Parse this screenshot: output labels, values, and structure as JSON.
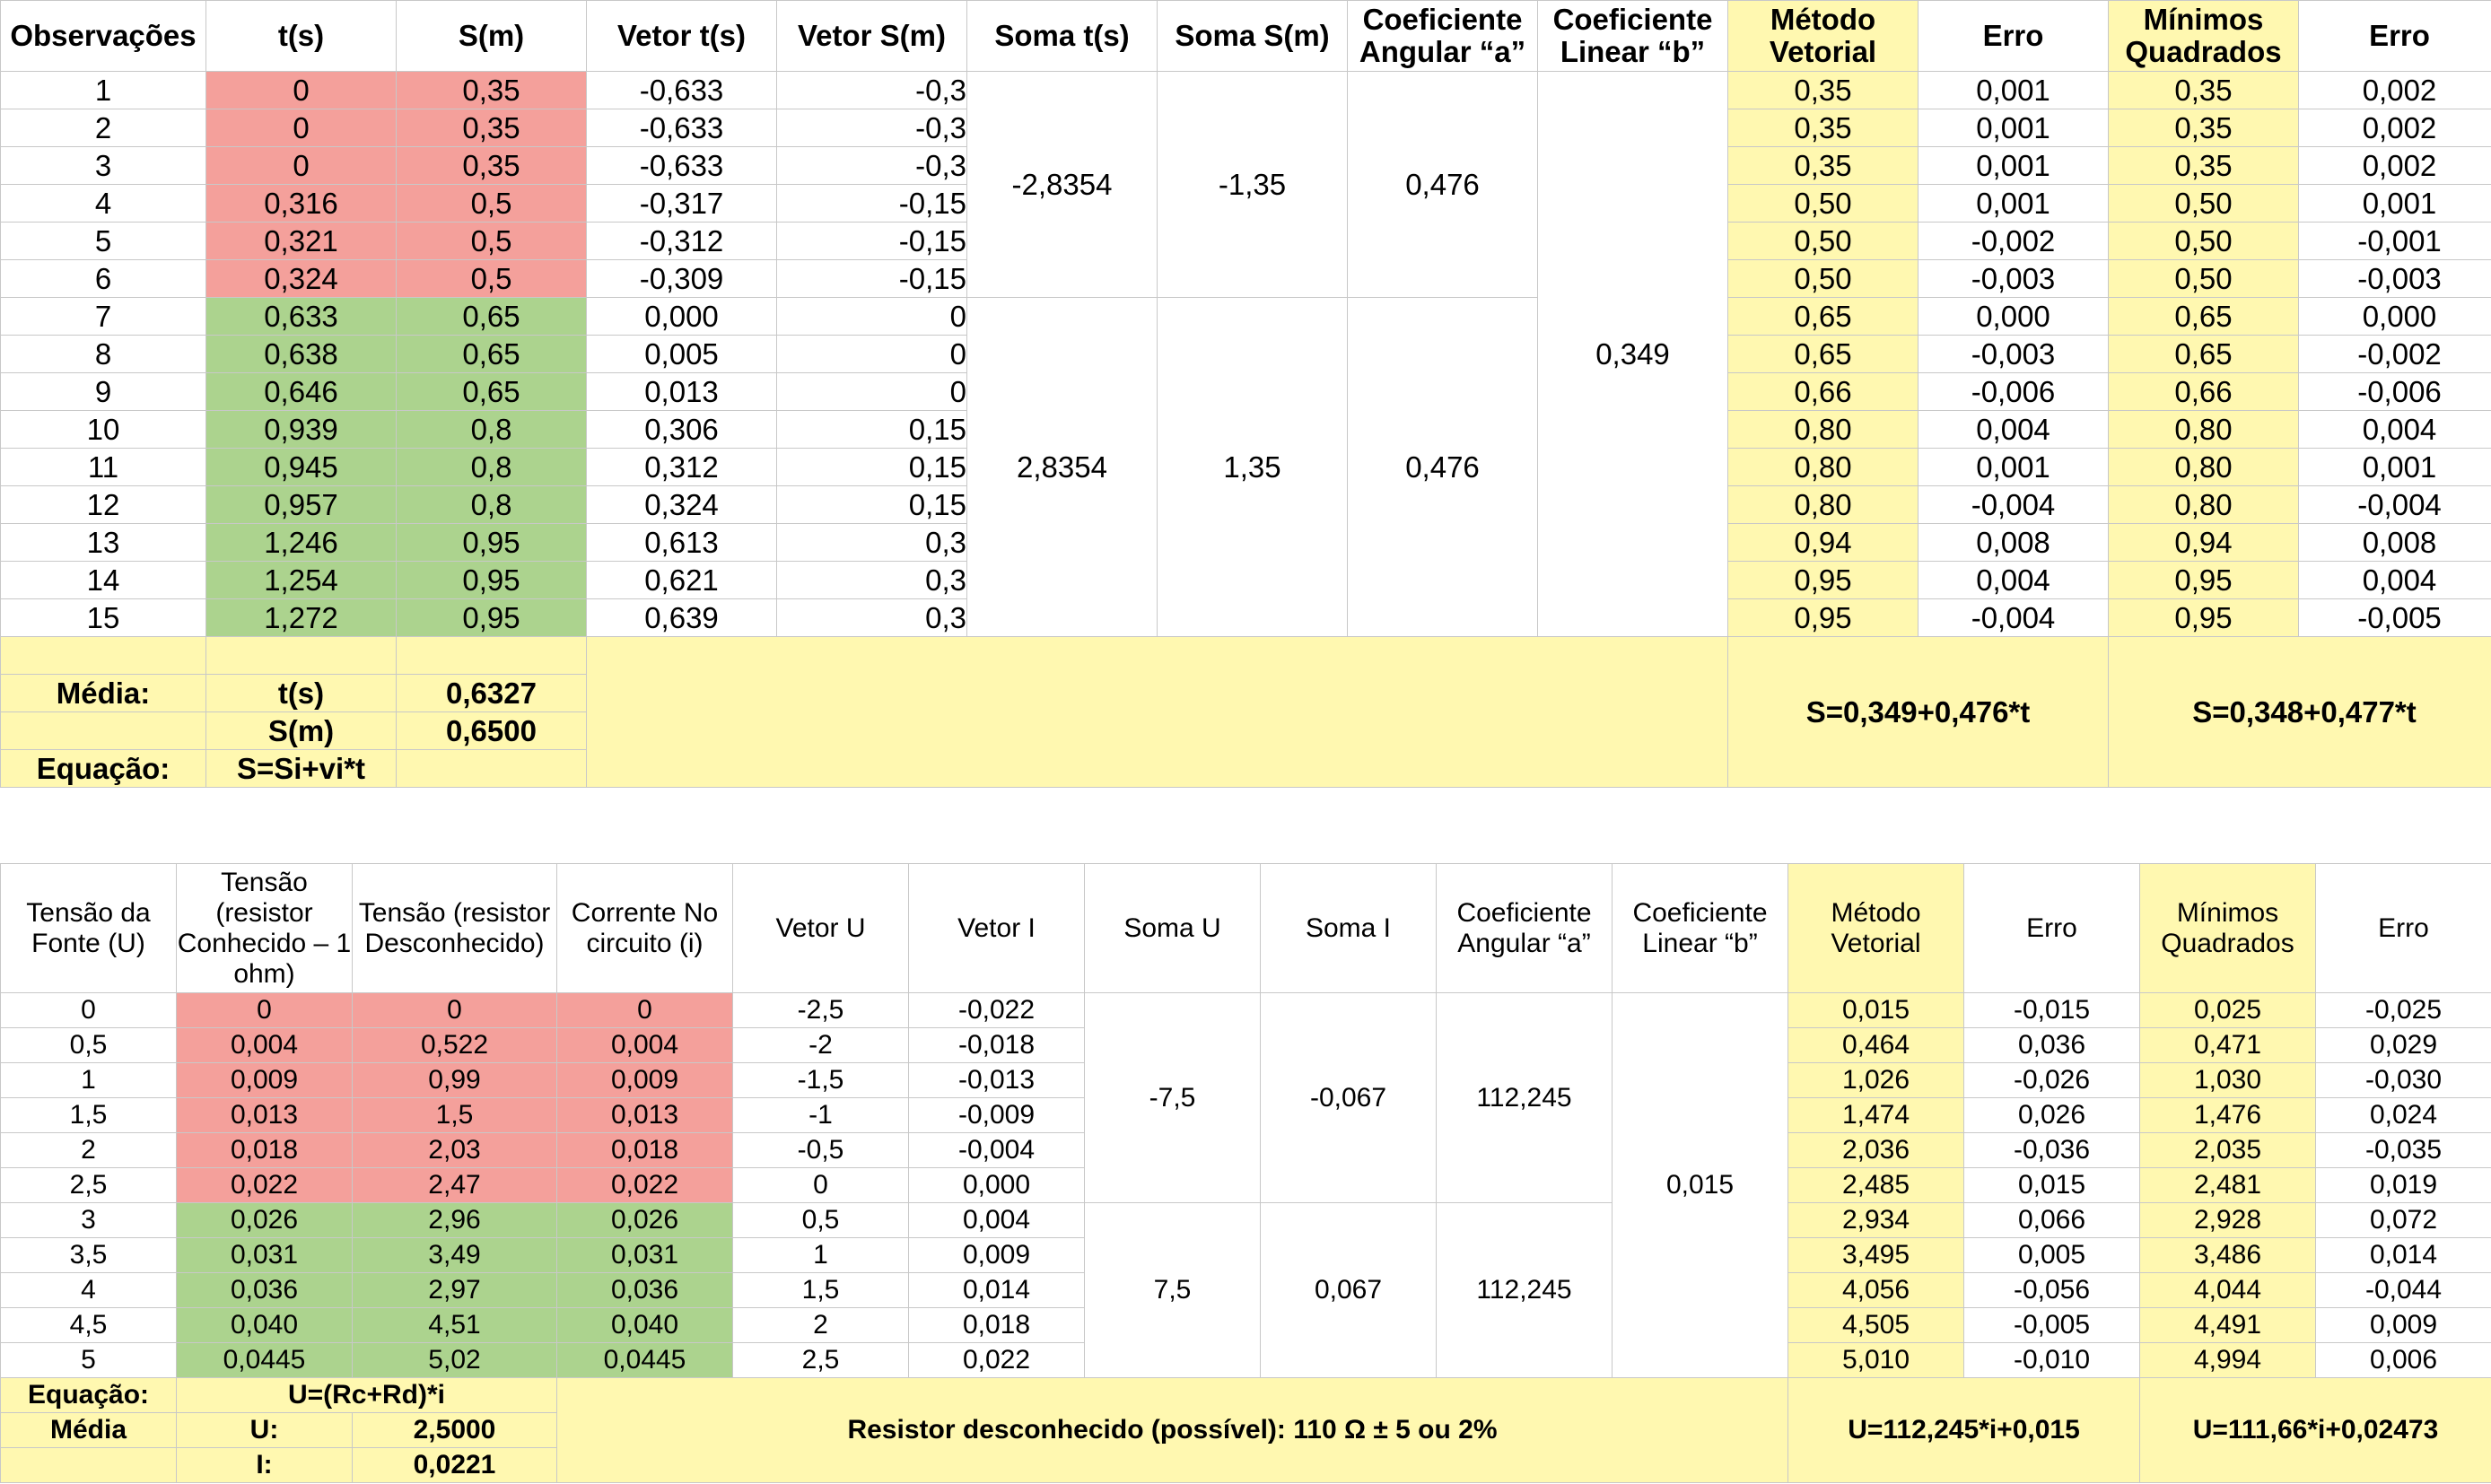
{
  "table1": {
    "headers": [
      "Observações",
      "t(s)",
      "S(m)",
      "Vetor t(s)",
      "Vetor S(m)",
      "Soma t(s)",
      "Soma S(m)",
      "Coeficiente Angular “a”",
      "Coeficiente Linear “b”",
      "Método Vetorial",
      "Erro",
      "Mínimos Quadrados",
      "Erro"
    ],
    "rows": [
      [
        "1",
        "0",
        "0,35",
        "-0,633",
        "-0,3",
        "0,35",
        "0,001",
        "0,35",
        "0,002"
      ],
      [
        "2",
        "0",
        "0,35",
        "-0,633",
        "-0,3",
        "0,35",
        "0,001",
        "0,35",
        "0,002"
      ],
      [
        "3",
        "0",
        "0,35",
        "-0,633",
        "-0,3",
        "0,35",
        "0,001",
        "0,35",
        "0,002"
      ],
      [
        "4",
        "0,316",
        "0,5",
        "-0,317",
        "-0,15",
        "0,50",
        "0,001",
        "0,50",
        "0,001"
      ],
      [
        "5",
        "0,321",
        "0,5",
        "-0,312",
        "-0,15",
        "0,50",
        "-0,002",
        "0,50",
        "-0,001"
      ],
      [
        "6",
        "0,324",
        "0,5",
        "-0,309",
        "-0,15",
        "0,50",
        "-0,003",
        "0,50",
        "-0,003"
      ],
      [
        "7",
        "0,633",
        "0,65",
        "0,000",
        "0",
        "0,65",
        "0,000",
        "0,65",
        "0,000"
      ],
      [
        "8",
        "0,638",
        "0,65",
        "0,005",
        "0",
        "0,65",
        "-0,003",
        "0,65",
        "-0,002"
      ],
      [
        "9",
        "0,646",
        "0,65",
        "0,013",
        "0",
        "0,66",
        "-0,006",
        "0,66",
        "-0,006"
      ],
      [
        "10",
        "0,939",
        "0,8",
        "0,306",
        "0,15",
        "0,80",
        "0,004",
        "0,80",
        "0,004"
      ],
      [
        "11",
        "0,945",
        "0,8",
        "0,312",
        "0,15",
        "0,80",
        "0,001",
        "0,80",
        "0,001"
      ],
      [
        "12",
        "0,957",
        "0,8",
        "0,324",
        "0,15",
        "0,80",
        "-0,004",
        "0,80",
        "-0,004"
      ],
      [
        "13",
        "1,246",
        "0,95",
        "0,613",
        "0,3",
        "0,94",
        "0,008",
        "0,94",
        "0,008"
      ],
      [
        "14",
        "1,254",
        "0,95",
        "0,621",
        "0,3",
        "0,95",
        "0,004",
        "0,95",
        "0,004"
      ],
      [
        "15",
        "1,272",
        "0,95",
        "0,639",
        "0,3",
        "0,95",
        "-0,004",
        "0,95",
        "-0,005"
      ]
    ],
    "groups": [
      {
        "soma_t": "-2,8354",
        "soma_s": "-1,35",
        "coef_a": "0,476"
      },
      {
        "soma_t": "2,8354",
        "soma_s": "1,35",
        "coef_a": "0,476"
      }
    ],
    "coef_b": "0,349",
    "footer": {
      "media_label": "Média:",
      "t_label": "t(s)",
      "t_value": "0,6327",
      "s_label": "S(m)",
      "s_value": "0,6500",
      "eq_label": "Equação:",
      "eq_value": "S=Si+vi*t",
      "vetorial_eq": "S=0,349+0,476*t",
      "minimos_eq": "S=0,348+0,477*t"
    }
  },
  "table2": {
    "headers": [
      "Tensão da Fonte (U)",
      "Tensão (resistor Conhecido – 1 ohm)",
      "Tensão (resistor Desconhecido)",
      "Corrente No circuito (i)",
      "Vetor U",
      "Vetor I",
      "Soma U",
      "Soma I",
      "Coeficiente Angular “a”",
      "Coeficiente Linear “b”",
      "Método Vetorial",
      "Erro",
      "Mínimos Quadrados",
      "Erro"
    ],
    "rows": [
      [
        "0",
        "0",
        "0",
        "0",
        "-2,5",
        "-0,022",
        "0,015",
        "-0,015",
        "0,025",
        "-0,025"
      ],
      [
        "0,5",
        "0,004",
        "0,522",
        "0,004",
        "-2",
        "-0,018",
        "0,464",
        "0,036",
        "0,471",
        "0,029"
      ],
      [
        "1",
        "0,009",
        "0,99",
        "0,009",
        "-1,5",
        "-0,013",
        "1,026",
        "-0,026",
        "1,030",
        "-0,030"
      ],
      [
        "1,5",
        "0,013",
        "1,5",
        "0,013",
        "-1",
        "-0,009",
        "1,474",
        "0,026",
        "1,476",
        "0,024"
      ],
      [
        "2",
        "0,018",
        "2,03",
        "0,018",
        "-0,5",
        "-0,004",
        "2,036",
        "-0,036",
        "2,035",
        "-0,035"
      ],
      [
        "2,5",
        "0,022",
        "2,47",
        "0,022",
        "0",
        "0,000",
        "2,485",
        "0,015",
        "2,481",
        "0,019"
      ],
      [
        "3",
        "0,026",
        "2,96",
        "0,026",
        "0,5",
        "0,004",
        "2,934",
        "0,066",
        "2,928",
        "0,072"
      ],
      [
        "3,5",
        "0,031",
        "3,49",
        "0,031",
        "1",
        "0,009",
        "3,495",
        "0,005",
        "3,486",
        "0,014"
      ],
      [
        "4",
        "0,036",
        "2,97",
        "0,036",
        "1,5",
        "0,014",
        "4,056",
        "-0,056",
        "4,044",
        "-0,044"
      ],
      [
        "4,5",
        "0,040",
        "4,51",
        "0,040",
        "2",
        "0,018",
        "4,505",
        "-0,005",
        "4,491",
        "0,009"
      ],
      [
        "5",
        "0,0445",
        "5,02",
        "0,0445",
        "2,5",
        "0,022",
        "5,010",
        "-0,010",
        "4,994",
        "0,006"
      ]
    ],
    "groups": [
      {
        "soma_u": "-7,5",
        "soma_i": "-0,067",
        "coef_a": "112,245"
      },
      {
        "soma_u": "7,5",
        "soma_i": "0,067",
        "coef_a": "112,245"
      }
    ],
    "coef_b": "0,015",
    "footer": {
      "eq_label": "Equação:",
      "eq_value": "U=(Rc+Rd)*i",
      "media_label": "Média",
      "u_label": "U:",
      "u_value": "2,5000",
      "i_label": "I:",
      "i_value": "0,0221",
      "resistor_note": "Resistor desconhecido (possível): 110 Ω ± 5 ou 2%",
      "vetorial_eq": "U=112,245*i+0,015",
      "minimos_eq": "U=111,66*i+0,02473"
    }
  }
}
